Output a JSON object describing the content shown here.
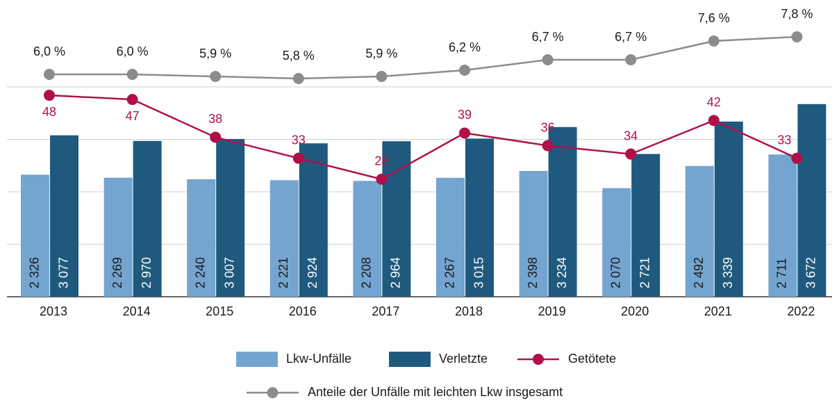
{
  "chart_data": {
    "type": "bar",
    "categories": [
      "2013",
      "2014",
      "2015",
      "2016",
      "2017",
      "2018",
      "2019",
      "2020",
      "2021",
      "2022"
    ],
    "ylim": [
      0,
      4000
    ],
    "yticks": [
      0,
      1000,
      2000,
      3000,
      4000
    ],
    "y2lim": [
      0,
      50
    ],
    "y3lim": [
      5,
      8
    ],
    "grid": true,
    "legend": "bottom",
    "series": [
      {
        "name": "Lkw-Unfälle",
        "type": "bar",
        "color": "#74a5d0",
        "values": [
          2326,
          2269,
          2240,
          2221,
          2208,
          2267,
          2398,
          2070,
          2492,
          2711
        ],
        "value_labels": [
          "2 326",
          "2 269",
          "2 240",
          "2 221",
          "2 208",
          "2 267",
          "2 398",
          "2 070",
          "2 492",
          "2 711"
        ]
      },
      {
        "name": "Verletzte",
        "type": "bar",
        "color": "#1f5a7e",
        "values": [
          3077,
          2970,
          3007,
          2924,
          2964,
          3015,
          3234,
          2721,
          3339,
          3672
        ],
        "value_labels": [
          "3 077",
          "2 970",
          "3 007",
          "2 924",
          "2 964",
          "3 015",
          "3 234",
          "2 721",
          "3 339",
          "3 672"
        ]
      },
      {
        "name": "Getötete",
        "type": "line",
        "axis": "y2",
        "color": "#b0104a",
        "values": [
          48,
          47,
          38,
          33,
          28,
          39,
          36,
          34,
          42,
          33
        ]
      },
      {
        "name": "Anteile der Unfälle mit leichten Lkw insgesamt",
        "type": "line",
        "axis": "y3",
        "color": "#8c8c8c",
        "values": [
          6.0,
          6.0,
          5.9,
          5.8,
          5.9,
          6.2,
          6.7,
          6.7,
          7.6,
          7.8
        ],
        "value_labels": [
          "6,0 %",
          "6,0 %",
          "5,9 %",
          "5,8 %",
          "5,9 %",
          "6,2 %",
          "6,7 %",
          "6,7 %",
          "7,6 %",
          "7,8 %"
        ]
      }
    ]
  }
}
